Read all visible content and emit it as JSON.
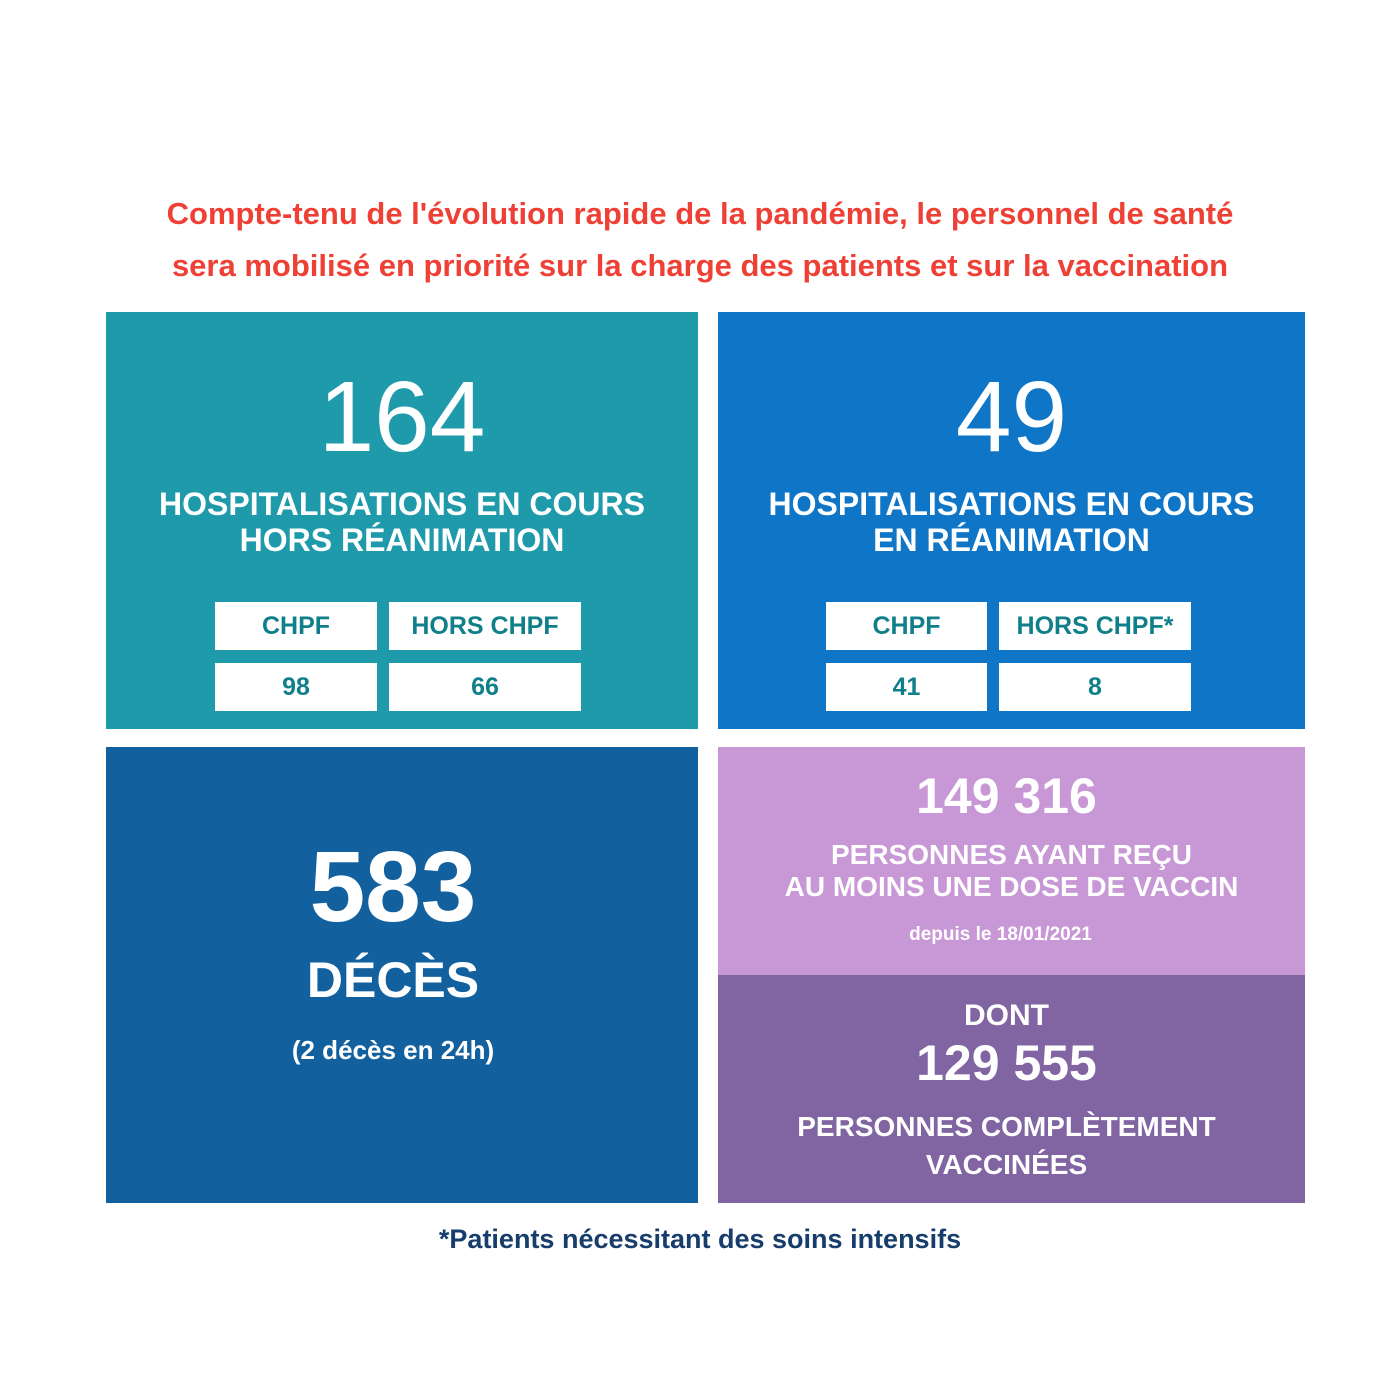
{
  "headline": {
    "line1": "Compte-tenu de l'évolution rapide de la pandémie, le personnel de santé",
    "line2": "sera mobilisé en priorité sur la charge des patients et sur la vaccination"
  },
  "hors_rea": {
    "value": "164",
    "label_line1": "HOSPITALISATIONS EN COURS",
    "label_line2": "HORS RÉANIMATION",
    "col1_header": "CHPF",
    "col2_header": "HORS CHPF",
    "col1_value": "98",
    "col2_value": "66"
  },
  "rea": {
    "value": "49",
    "label_line1": "HOSPITALISATIONS EN COURS",
    "label_line2": "EN RÉANIMATION",
    "col1_header": "CHPF",
    "col2_header": "HORS CHPF*",
    "col1_value": "41",
    "col2_value": "8"
  },
  "deces": {
    "value": "583",
    "label": "DÉCÈS",
    "sub": "(2 décès en 24h)"
  },
  "vaccin_une_dose": {
    "value": "149 316",
    "label_line1": "PERSONNES AYANT REÇU",
    "label_line2": "AU MOINS UNE DOSE DE VACCIN",
    "since": "depuis le 18/01/2021"
  },
  "vaccin_complet": {
    "prefix": "DONT",
    "value": "129 555",
    "label_line1": "PERSONNES COMPLÈTEMENT",
    "label_line2": "VACCINÉES"
  },
  "footnote": "*Patients nécessitant des soins intensifs",
  "colors": {
    "headline": "#ee4035",
    "teal": "#1f9aab",
    "blue": "#0e75c7",
    "dark_blue": "#12609e",
    "lilac": "#c897d6",
    "purple": "#8164a2",
    "footnote": "#163d6b"
  }
}
